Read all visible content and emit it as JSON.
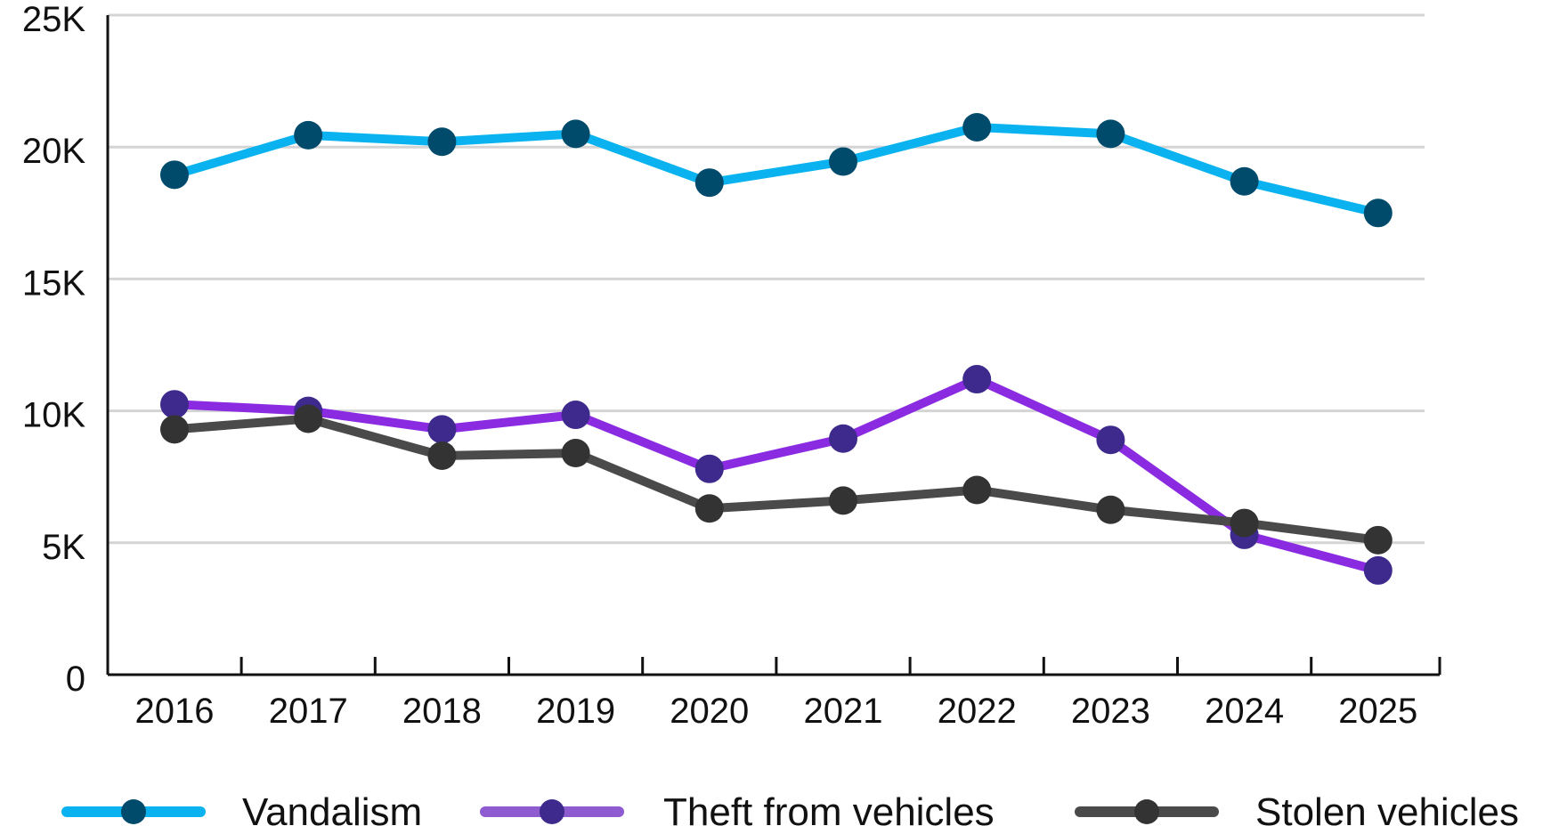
{
  "chart_data": {
    "type": "line",
    "title": "",
    "xlabel": "",
    "ylabel": "",
    "categories": [
      "2016",
      "2017",
      "2018",
      "2019",
      "2020",
      "2021",
      "2022",
      "2023",
      "2024",
      "2025"
    ],
    "ylim": [
      0,
      25000
    ],
    "yticks": [
      0,
      5000,
      10000,
      15000,
      20000,
      25000
    ],
    "ytick_labels": [
      "0",
      "5K",
      "10K",
      "15K",
      "20K",
      "25K"
    ],
    "grid": "horizontal",
    "legend_position": "bottom",
    "series": [
      {
        "name": "Vandalism",
        "line_color": "#0ab3ef",
        "marker_color": "#004b6b",
        "values": [
          18950,
          20450,
          20200,
          20500,
          18650,
          19450,
          20750,
          20500,
          18700,
          17500
        ]
      },
      {
        "name": "Theft from vehicles",
        "line_color": "#8a2be2",
        "marker_color": "#3e2a8c",
        "legend_line_color": "#8e5bd0",
        "values": [
          10250,
          10000,
          9300,
          9850,
          7800,
          8950,
          11200,
          8900,
          5300,
          3950
        ]
      },
      {
        "name": "Stolen vehicles",
        "line_color": "#4a4a4a",
        "marker_color": "#333333",
        "values": [
          9300,
          9700,
          8300,
          8400,
          6300,
          6600,
          7000,
          6250,
          5750,
          5100
        ]
      }
    ]
  }
}
